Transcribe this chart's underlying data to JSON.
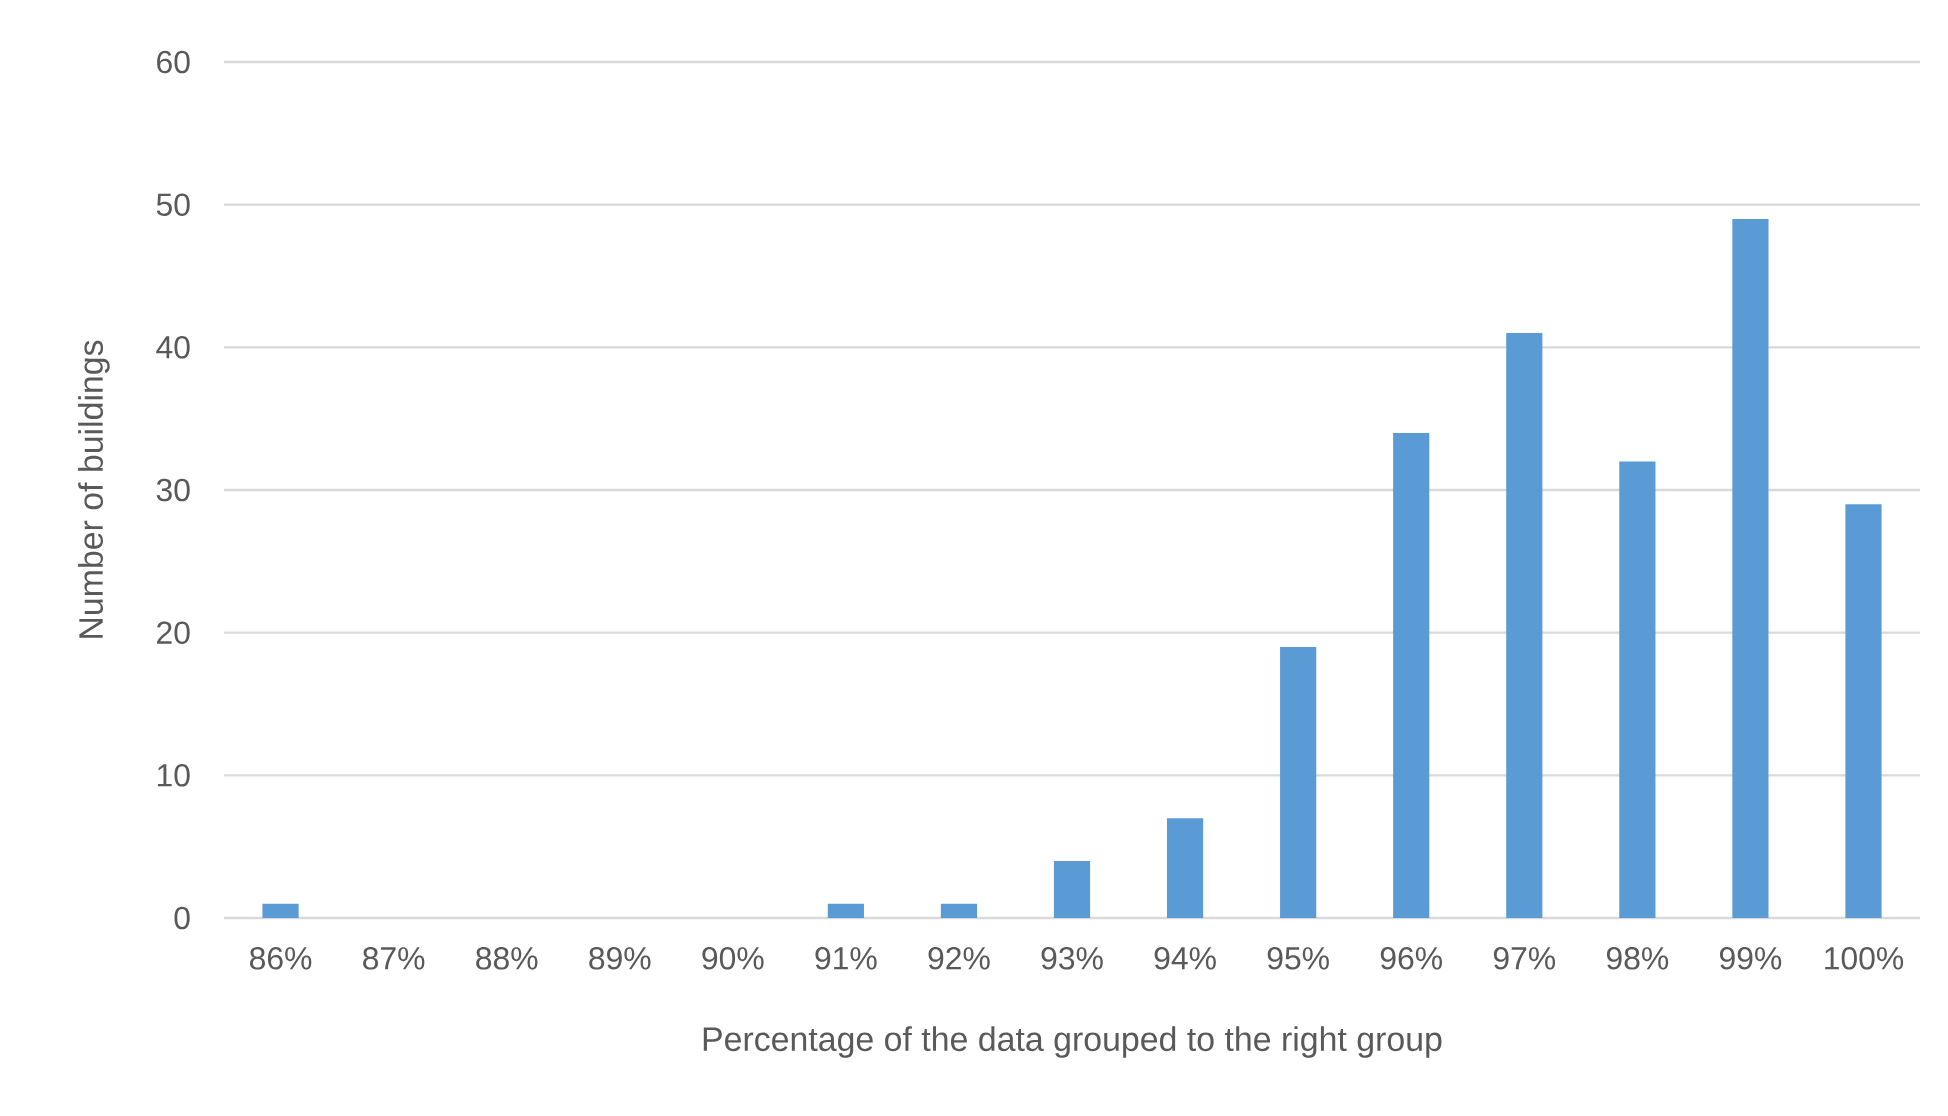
{
  "chart_data": {
    "type": "bar",
    "xlabel": "Percentage of the data grouped to the right group",
    "ylabel": "Number of buildings",
    "categories": [
      "86%",
      "87%",
      "88%",
      "89%",
      "90%",
      "91%",
      "92%",
      "93%",
      "94%",
      "95%",
      "96%",
      "97%",
      "98%",
      "99%",
      "100%"
    ],
    "values": [
      1,
      0,
      0,
      0,
      0,
      1,
      1,
      4,
      7,
      19,
      34,
      41,
      32,
      49,
      29
    ],
    "color": "#5b9bd5",
    "ylim": [
      0,
      60
    ],
    "yticks": [
      0,
      10,
      20,
      30,
      40,
      50,
      60
    ],
    "grid": "y"
  }
}
